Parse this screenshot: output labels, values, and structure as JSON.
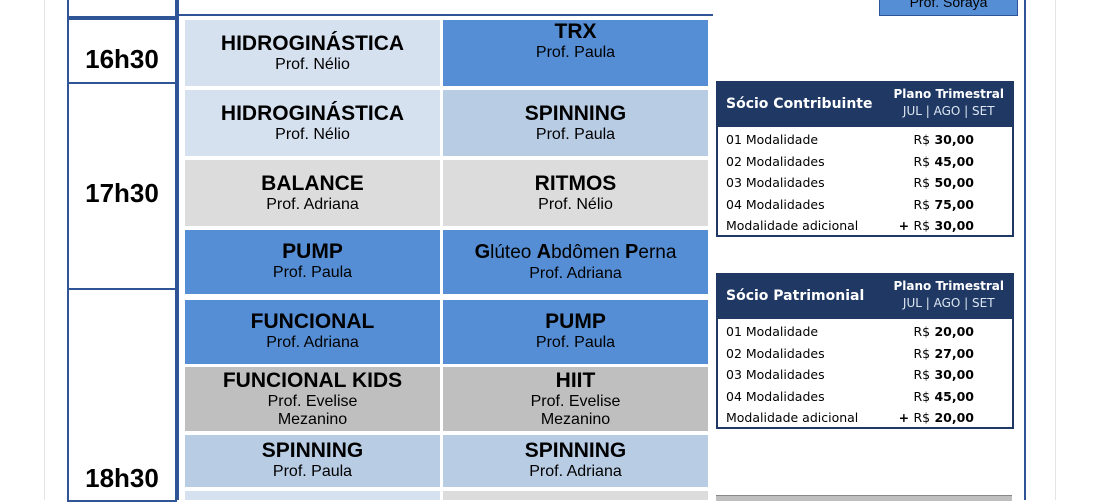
{
  "top_button": {
    "label": "Prof. Soraya"
  },
  "times": [
    "16h30",
    "17h30",
    "18h30"
  ],
  "classes": [
    {
      "name": "HIDROGINÁSTICA",
      "prof": "Prof. Nélio"
    },
    {
      "name": "TRX",
      "prof": "Prof. Paula"
    },
    {
      "name": "HIDROGINÁSTICA",
      "prof": "Prof. Nélio"
    },
    {
      "name": "SPINNING",
      "prof": "Prof.  Paula"
    },
    {
      "name": "BALANCE",
      "prof": "Prof. Adriana"
    },
    {
      "name": "RITMOS",
      "prof": "Prof. Nélio"
    },
    {
      "name": "PUMP",
      "prof": "Prof. Paula"
    },
    {
      "name_parts": [
        "G",
        "lúteo ",
        "A",
        "bdômen ",
        "P",
        "erna"
      ],
      "prof": "Prof. Adriana"
    },
    {
      "name": "FUNCIONAL",
      "prof": "Prof. Adriana"
    },
    {
      "name": "PUMP",
      "prof": "Prof. Paula"
    },
    {
      "name": "FUNCIONAL KIDS",
      "prof": "Prof. Evelise",
      "extra": "Mezanino"
    },
    {
      "name": "HIIT",
      "prof": "Prof. Evelise",
      "extra": "Mezanino"
    },
    {
      "name": "SPINNING",
      "prof": "Prof. Paula"
    },
    {
      "name": "SPINNING",
      "prof": "Prof. Adriana"
    }
  ],
  "pricing": [
    {
      "title": "Sócio Contribuinte",
      "plan_line1": "Plano Trimestral",
      "plan_line2": "JUL | AGO | SET",
      "rows": [
        {
          "label": "01 Modalidade",
          "prefix": "",
          "currency": "R$",
          "value": "30,00"
        },
        {
          "label": "02 Modalidades",
          "prefix": "",
          "currency": "R$",
          "value": "45,00"
        },
        {
          "label": "03 Modalidades",
          "prefix": "",
          "currency": "R$",
          "value": "50,00"
        },
        {
          "label": "04 Modalidades",
          "prefix": "",
          "currency": "R$",
          "value": "75,00"
        },
        {
          "label": "Modalidade adicional",
          "prefix": "+ ",
          "currency": "R$",
          "value": "30,00"
        }
      ]
    },
    {
      "title": "Sócio Patrimonial",
      "plan_line1": "Plano Trimestral",
      "plan_line2": "JUL | AGO | SET",
      "rows": [
        {
          "label": "01 Modalidade",
          "prefix": "",
          "currency": "R$",
          "value": "20,00"
        },
        {
          "label": "02 Modalidades",
          "prefix": "",
          "currency": "R$",
          "value": "27,00"
        },
        {
          "label": "03 Modalidades",
          "prefix": "",
          "currency": "R$",
          "value": "30,00"
        },
        {
          "label": "04 Modalidades",
          "prefix": "",
          "currency": "R$",
          "value": "45,00"
        },
        {
          "label": "Modalidade adicional",
          "prefix": "+ ",
          "currency": "R$",
          "value": "20,00"
        }
      ]
    }
  ]
}
